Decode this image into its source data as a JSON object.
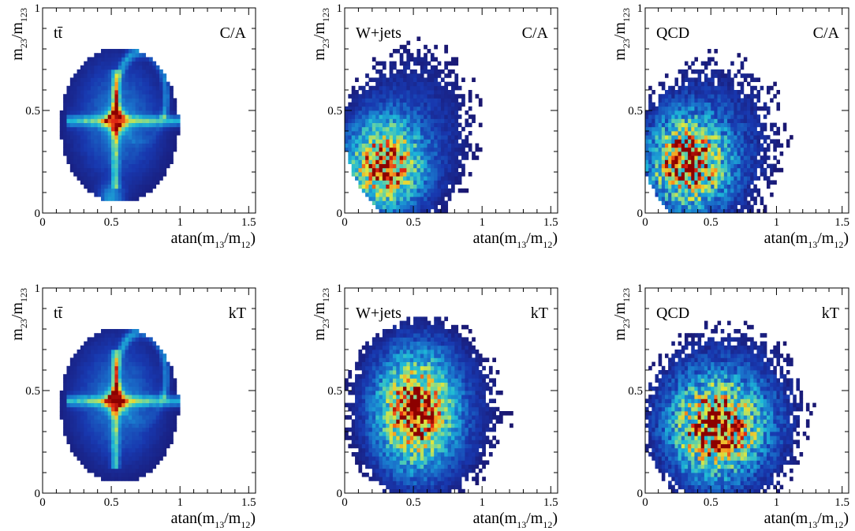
{
  "figure": {
    "x_ticks": [
      "0",
      "0.5",
      "1",
      "1.5"
    ],
    "y_ticks": [
      "0",
      "0.5",
      "1"
    ],
    "xlabel": {
      "base": "atan(m",
      "s1": "13",
      "mid": "/m",
      "s2": "12",
      "end": ")"
    },
    "ylabel": {
      "base": "m",
      "s1": "23",
      "mid": "/m",
      "s2": "123"
    }
  },
  "chart_data": [
    {
      "type": "heatmap",
      "process": "tt̄",
      "algorithm": "C/A",
      "xlim": [
        0,
        1.55
      ],
      "ylim": [
        0,
        1
      ],
      "xlabel": "atan(m13/m12)",
      "ylabel": "m23/m123",
      "features": {
        "peak": [
          0.53,
          0.45
        ],
        "horizontal_band_y": 0.45,
        "vertical_band_x": 0.53,
        "ring_center": [
          0.72,
          0.57
        ],
        "ring_radius": [
          0.18,
          0.22
        ]
      }
    },
    {
      "type": "heatmap",
      "process": "W+jets",
      "algorithm": "C/A",
      "xlim": [
        0,
        1.55
      ],
      "ylim": [
        0,
        1
      ],
      "xlabel": "atan(m13/m12)",
      "ylabel": "m23/m123",
      "features": {
        "peak": [
          0.28,
          0.22
        ]
      }
    },
    {
      "type": "heatmap",
      "process": "QCD",
      "algorithm": "C/A",
      "xlim": [
        0,
        1.55
      ],
      "ylim": [
        0,
        1
      ],
      "xlabel": "atan(m13/m12)",
      "ylabel": "m23/m123",
      "features": {
        "peak": [
          0.33,
          0.23
        ]
      }
    },
    {
      "type": "heatmap",
      "process": "tt̄",
      "algorithm": "kT",
      "xlim": [
        0,
        1.55
      ],
      "ylim": [
        0,
        1
      ],
      "xlabel": "atan(m13/m12)",
      "ylabel": "m23/m123",
      "features": {
        "peak": [
          0.52,
          0.45
        ],
        "horizontal_band_y": 0.45,
        "vertical_band_x": 0.52,
        "ring_center": [
          0.72,
          0.57
        ],
        "ring_radius": [
          0.18,
          0.22
        ]
      }
    },
    {
      "type": "heatmap",
      "process": "W+jets",
      "algorithm": "kT",
      "xlim": [
        0,
        1.55
      ],
      "ylim": [
        0,
        1
      ],
      "xlabel": "atan(m13/m12)",
      "ylabel": "m23/m123",
      "features": {
        "peak": [
          0.52,
          0.42
        ]
      }
    },
    {
      "type": "heatmap",
      "process": "QCD",
      "algorithm": "kT",
      "xlim": [
        0,
        1.55
      ],
      "ylim": [
        0,
        1
      ],
      "xlabel": "atan(m13/m12)",
      "ylabel": "m23/m123",
      "features": {
        "peak": [
          0.52,
          0.3
        ]
      }
    }
  ]
}
